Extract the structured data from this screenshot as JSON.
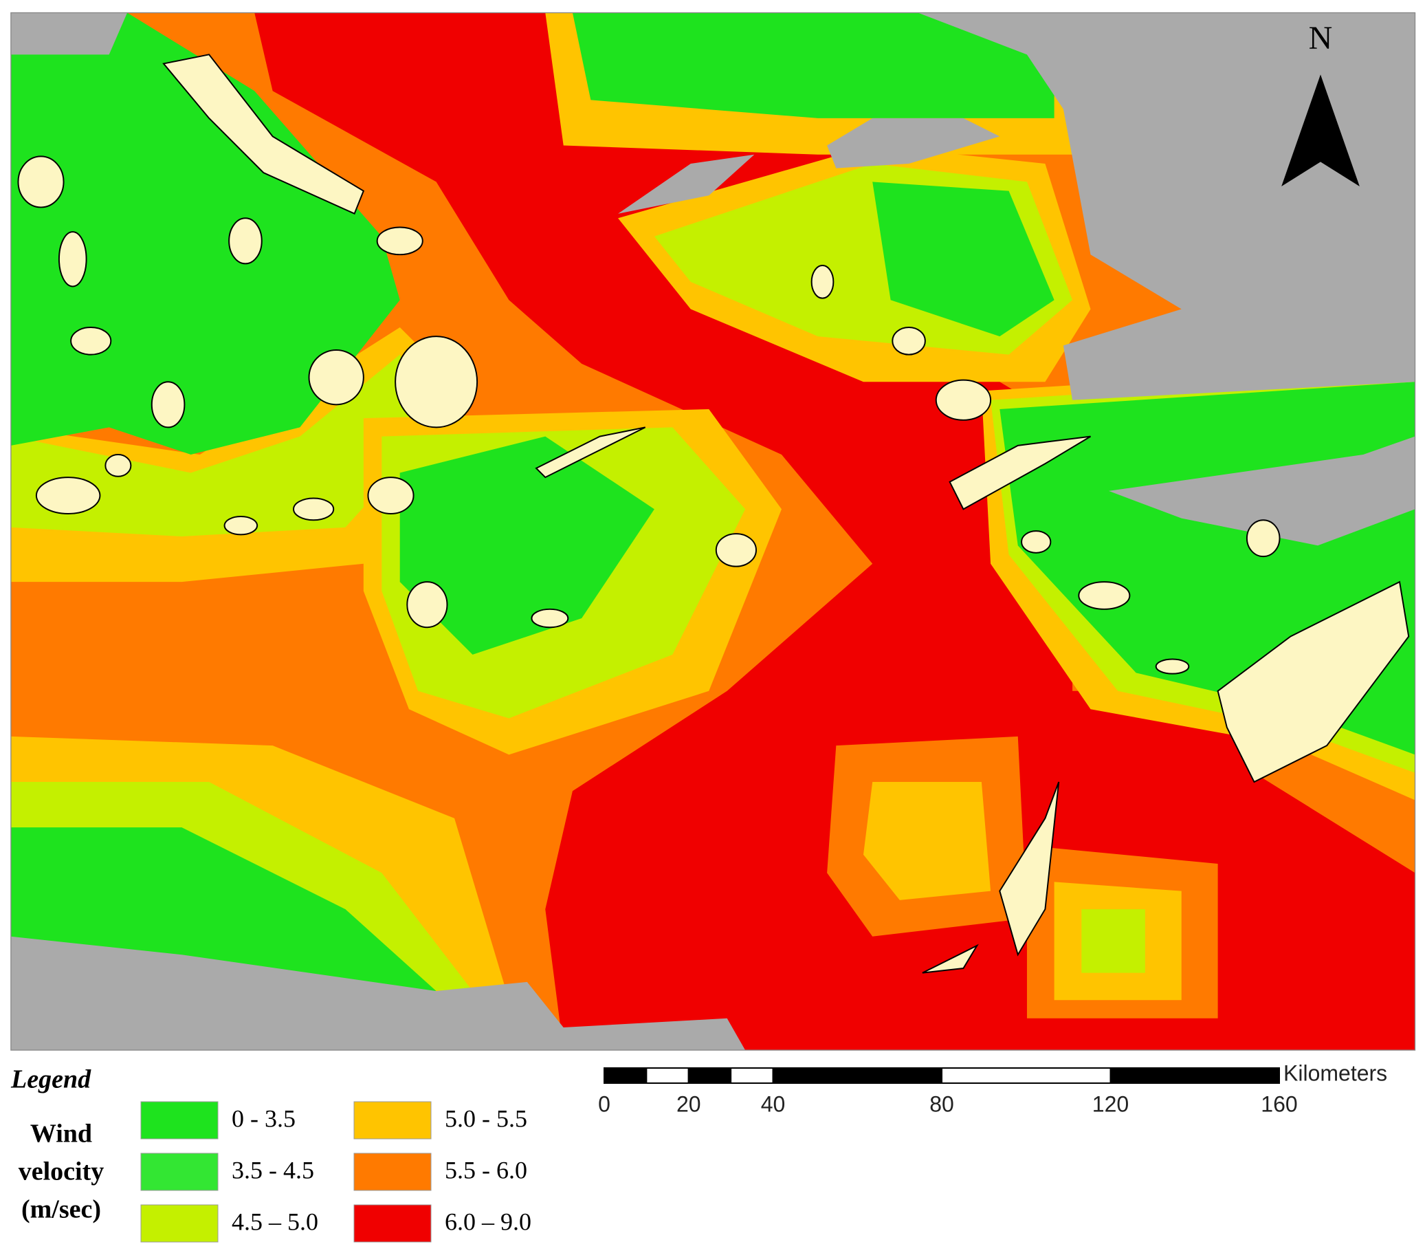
{
  "map": {
    "north_label": "N"
  },
  "legend": {
    "title": "Legend",
    "variable": [
      "Wind",
      "velocity",
      "(m/sec)"
    ],
    "items": [
      {
        "label": "0 - 3.5",
        "color": "#1ee31e"
      },
      {
        "label": "3.5 - 4.5",
        "color": "#33e633"
      },
      {
        "label": "4.5 – 5.0",
        "color": "#c4f000"
      },
      {
        "label": "5.0 - 5.5",
        "color": "#ffc400"
      },
      {
        "label": "5.5 - 6.0",
        "color": "#ff7a00"
      },
      {
        "label": "6.0 – 9.0",
        "color": "#f00000"
      }
    ]
  },
  "scale_bar": {
    "unit": "Kilometers",
    "ticks": [
      0,
      20,
      40,
      80,
      120,
      160
    ]
  }
}
